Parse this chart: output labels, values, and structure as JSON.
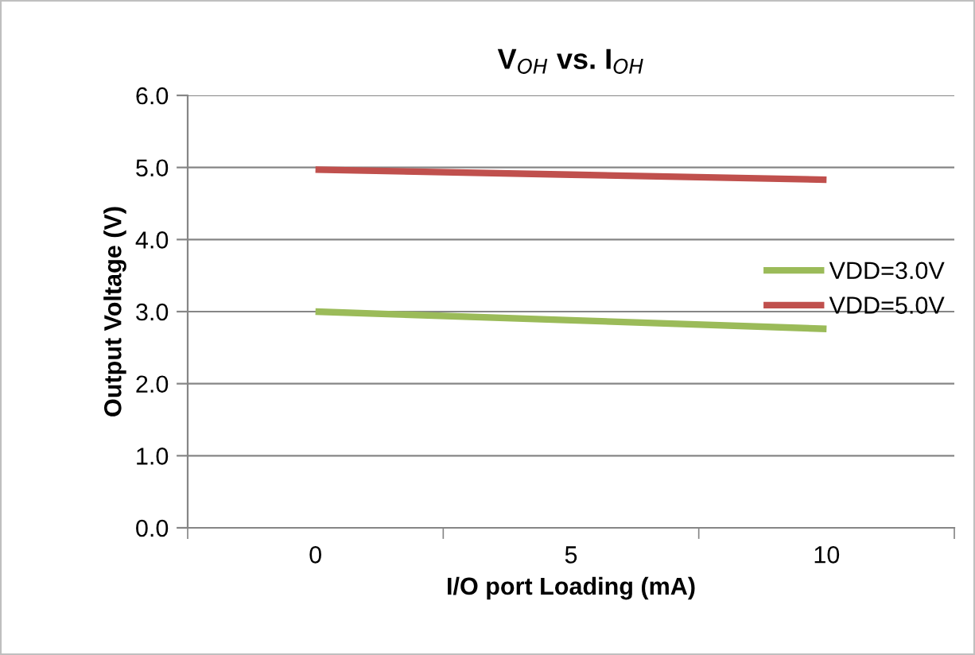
{
  "chart_data": {
    "type": "line",
    "title": "V$_{OH}$ vs. I$_{OH}$",
    "xlabel": "I/O port Loading (mA)",
    "ylabel": "Output Voltage (V)",
    "categories": [
      "0",
      "5",
      "10"
    ],
    "series": [
      {
        "name": "VDD=3.0V",
        "color": "#9bbb59",
        "values": [
          3.0,
          2.88,
          2.76
        ]
      },
      {
        "name": "VDD=5.0V",
        "color": "#c0504d",
        "values": [
          4.97,
          4.9,
          4.83
        ]
      }
    ],
    "ylim": [
      0,
      6
    ],
    "yticks": [
      {
        "value": 0,
        "label": "0.0"
      },
      {
        "value": 1,
        "label": "1.0"
      },
      {
        "value": 2,
        "label": "2.0"
      },
      {
        "value": 3,
        "label": "3.0"
      },
      {
        "value": 4,
        "label": "4.0"
      },
      {
        "value": 5,
        "label": "5.0"
      },
      {
        "value": 6,
        "label": "6.0"
      }
    ],
    "grid": "y",
    "legend": "right",
    "marker": "none",
    "line_style": "solid"
  }
}
